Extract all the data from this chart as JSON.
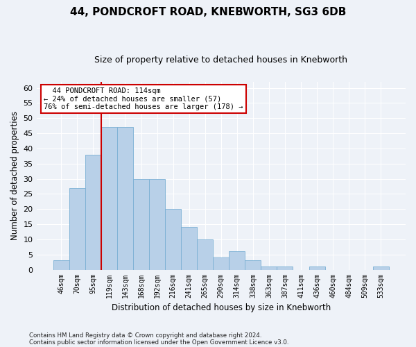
{
  "title": "44, PONDCROFT ROAD, KNEBWORTH, SG3 6DB",
  "subtitle": "Size of property relative to detached houses in Knebworth",
  "xlabel": "Distribution of detached houses by size in Knebworth",
  "ylabel": "Number of detached properties",
  "bar_labels": [
    "46sqm",
    "70sqm",
    "95sqm",
    "119sqm",
    "143sqm",
    "168sqm",
    "192sqm",
    "216sqm",
    "241sqm",
    "265sqm",
    "290sqm",
    "314sqm",
    "338sqm",
    "363sqm",
    "387sqm",
    "411sqm",
    "436sqm",
    "460sqm",
    "484sqm",
    "509sqm",
    "533sqm"
  ],
  "bar_values": [
    3,
    27,
    38,
    47,
    47,
    30,
    30,
    20,
    14,
    10,
    4,
    6,
    3,
    1,
    1,
    0,
    1,
    0,
    0,
    0,
    1
  ],
  "bar_color": "#b8d0e8",
  "bar_edgecolor": "#7aafd4",
  "vline_index": 3,
  "vline_color": "#cc0000",
  "ylim": [
    0,
    62
  ],
  "yticks": [
    0,
    5,
    10,
    15,
    20,
    25,
    30,
    35,
    40,
    45,
    50,
    55,
    60
  ],
  "annotation_line1": "  44 PONDCROFT ROAD: 114sqm",
  "annotation_line2": "← 24% of detached houses are smaller (57)",
  "annotation_line3": "76% of semi-detached houses are larger (178) →",
  "annotation_box_facecolor": "#ffffff",
  "annotation_box_edgecolor": "#cc0000",
  "bg_color": "#eef2f8",
  "plot_bg_color": "#eef2f8",
  "title_fontsize": 11,
  "subtitle_fontsize": 9,
  "footer1": "Contains HM Land Registry data © Crown copyright and database right 2024.",
  "footer2": "Contains public sector information licensed under the Open Government Licence v3.0."
}
